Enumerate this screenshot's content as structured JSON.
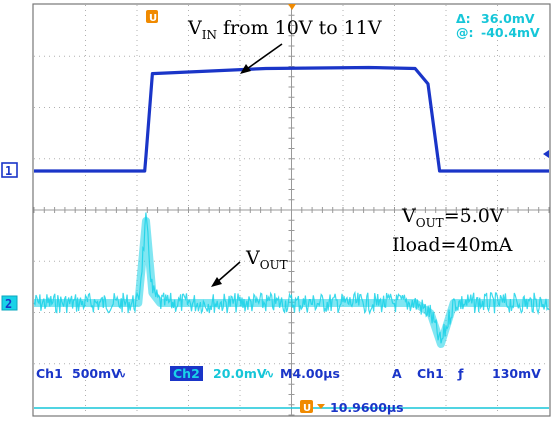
{
  "chart_data": {
    "type": "line",
    "title": "",
    "time_unit": "µs",
    "time_per_div": 4.0,
    "horizontal_divisions": 10,
    "vertical_divisions": 8,
    "time_range_us": [
      -20,
      20
    ],
    "grid": true,
    "series": [
      {
        "channel": "Ch1",
        "scale_per_div_mV": 500,
        "coupling_symbol": "∿",
        "color": "#1a35c8",
        "t_us": [
          -20,
          -11.4,
          -11.3,
          -10.8,
          -2,
          6,
          9.6,
          10.6,
          11.5,
          12.5,
          20
        ],
        "offset_divs": [
          0,
          0,
          0.3,
          1.9,
          2.0,
          2.02,
          2.0,
          1.7,
          0.0,
          0.0,
          0.0
        ]
      },
      {
        "channel": "Ch2",
        "scale_per_div_mV": 20.0,
        "coupling_symbol": "∿",
        "color": "#19d2e8",
        "t_us": [
          -20,
          -11.9,
          -11.3,
          -10.8,
          -10.2,
          9.6,
          10.8,
          11.6,
          12.6,
          20
        ],
        "offset_divs": [
          0,
          0,
          1.6,
          0.2,
          0,
          0,
          -0.2,
          -0.8,
          0,
          0
        ],
        "noise_band_divs": 0.4
      }
    ],
    "annotations": [
      {
        "base": "V",
        "sub": "IN",
        "rest": " from 10V to 11V"
      },
      {
        "base": "V",
        "sub": "OUT",
        "rest": "=5.0V"
      },
      {
        "base": "",
        "sub": "",
        "rest": "Iload=40mA"
      },
      {
        "base": "V",
        "sub": "OUT",
        "rest": ""
      }
    ],
    "measurements": {
      "delta_symbol": "Δ:",
      "delta_value": "36.0mV",
      "at_symbol": "@:",
      "at_value": "-40.4mV"
    },
    "markers": {
      "ch1": "1",
      "ch2": "2",
      "trigger": "T",
      "cursor": "U"
    },
    "status_bar": {
      "ch1_label": "Ch1",
      "ch1_scale": "500mV",
      "ch1_coupling": "∿",
      "ch2_label": "Ch2",
      "ch2_scale": "20.0mV",
      "ch2_coupling": "∿",
      "timebase": "M4.00µs",
      "trigger_mode": "A",
      "trigger_source": "Ch1",
      "trigger_slope": "ƒ",
      "trigger_level": "130mV",
      "cursor_time": "10.9600µs"
    },
    "colors": {
      "ch1": "#1a35c8",
      "ch2": "#19d2e8",
      "grid": "#b0b0b0",
      "trigger_marker": "#f08a00"
    }
  }
}
